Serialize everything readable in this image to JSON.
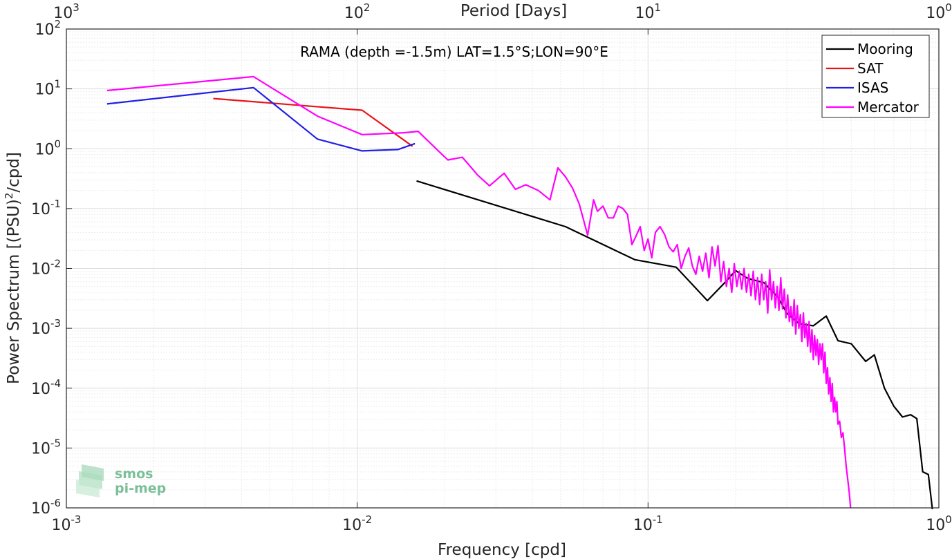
{
  "chart_data": {
    "type": "line",
    "annotation": "RAMA (depth =-1.5m) LAT=1.5°S;LON=90°E",
    "xlabel": "Frequency [cpd]",
    "ylabel_main": "Power Spectrum [(PSU)",
    "ylabel_sup": "2",
    "ylabel_tail": "/cpd]",
    "top_xlabel": "Period [Days]",
    "x_scale": "log",
    "y_scale": "log",
    "xlim": [
      0.001,
      1
    ],
    "ylim": [
      1e-06,
      100
    ],
    "grid": true,
    "legend_position": "top-right",
    "x_ticks": [
      {
        "value": 0.001,
        "base": "10",
        "exp": "-3"
      },
      {
        "value": 0.01,
        "base": "10",
        "exp": "-2"
      },
      {
        "value": 0.1,
        "base": "10",
        "exp": "-1"
      },
      {
        "value": 1,
        "base": "10",
        "exp": "0"
      }
    ],
    "y_ticks": [
      {
        "value": 100,
        "base": "10",
        "exp": "2"
      },
      {
        "value": 10,
        "base": "10",
        "exp": "1"
      },
      {
        "value": 1,
        "base": "10",
        "exp": "0"
      },
      {
        "value": 0.1,
        "base": "10",
        "exp": "-1"
      },
      {
        "value": 0.01,
        "base": "10",
        "exp": "-2"
      },
      {
        "value": 0.001,
        "base": "10",
        "exp": "-3"
      },
      {
        "value": 0.0001,
        "base": "10",
        "exp": "-4"
      },
      {
        "value": 1e-05,
        "base": "10",
        "exp": "-5"
      },
      {
        "value": 1e-06,
        "base": "10",
        "exp": "-6"
      }
    ],
    "top_ticks": [
      {
        "value": 0.001,
        "base": "10",
        "exp": "3"
      },
      {
        "value": 0.01,
        "base": "10",
        "exp": "2"
      },
      {
        "value": 0.1,
        "base": "10",
        "exp": "1"
      },
      {
        "value": 1,
        "base": "10",
        "exp": "0"
      }
    ],
    "series": [
      {
        "name": "Mooring",
        "color": "#000000",
        "points": [
          [
            0.016,
            0.29
          ],
          [
            0.052,
            0.05
          ],
          [
            0.09,
            0.014
          ],
          [
            0.125,
            0.0105
          ],
          [
            0.16,
            0.0029
          ],
          [
            0.185,
            0.006
          ],
          [
            0.2,
            0.0092
          ],
          [
            0.22,
            0.0068
          ],
          [
            0.25,
            0.0058
          ],
          [
            0.28,
            0.0033
          ],
          [
            0.3,
            0.0018
          ],
          [
            0.33,
            0.0012
          ],
          [
            0.37,
            0.0011
          ],
          [
            0.41,
            0.0016
          ],
          [
            0.45,
            0.00062
          ],
          [
            0.5,
            0.00055
          ],
          [
            0.56,
            0.00028
          ],
          [
            0.6,
            0.00036
          ],
          [
            0.65,
            0.0001
          ],
          [
            0.7,
            5e-05
          ],
          [
            0.75,
            3.3e-05
          ],
          [
            0.8,
            3.6e-05
          ],
          [
            0.84,
            3.1e-05
          ],
          [
            0.88,
            4e-06
          ],
          [
            0.92,
            3.6e-06
          ],
          [
            0.95,
            9.5e-07
          ]
        ]
      },
      {
        "name": "SAT",
        "color": "#e8141a",
        "points": [
          [
            0.0032,
            6.9
          ],
          [
            0.0104,
            4.4
          ],
          [
            0.0155,
            1.1
          ]
        ]
      },
      {
        "name": "ISAS",
        "color": "#1f1fe6",
        "points": [
          [
            0.00138,
            5.6
          ],
          [
            0.0044,
            10.5
          ],
          [
            0.0073,
            1.45
          ],
          [
            0.0104,
            0.92
          ],
          [
            0.0138,
            0.97
          ],
          [
            0.0158,
            1.22
          ]
        ]
      },
      {
        "name": "Mercator",
        "color": "#ff00ff",
        "points": [
          [
            0.00138,
            9.4
          ],
          [
            0.0044,
            16
          ],
          [
            0.0073,
            3.5
          ],
          [
            0.0104,
            1.72
          ],
          [
            0.0145,
            1.85
          ],
          [
            0.0162,
            1.95
          ],
          [
            0.0183,
            1.1
          ],
          [
            0.0205,
            0.65
          ],
          [
            0.023,
            0.72
          ],
          [
            0.026,
            0.36
          ],
          [
            0.0285,
            0.24
          ],
          [
            0.032,
            0.39
          ],
          [
            0.035,
            0.21
          ],
          [
            0.038,
            0.25
          ],
          [
            0.042,
            0.2
          ],
          [
            0.046,
            0.14
          ],
          [
            0.049,
            0.48
          ],
          [
            0.052,
            0.34
          ],
          [
            0.055,
            0.22
          ],
          [
            0.058,
            0.12
          ],
          [
            0.062,
            0.036
          ],
          [
            0.065,
            0.14
          ],
          [
            0.067,
            0.09
          ],
          [
            0.07,
            0.11
          ],
          [
            0.073,
            0.07
          ],
          [
            0.076,
            0.07
          ],
          [
            0.079,
            0.11
          ],
          [
            0.082,
            0.1
          ],
          [
            0.085,
            0.08
          ],
          [
            0.088,
            0.025
          ],
          [
            0.091,
            0.035
          ],
          [
            0.094,
            0.05
          ],
          [
            0.097,
            0.02
          ],
          [
            0.1,
            0.031
          ],
          [
            0.103,
            0.015
          ],
          [
            0.106,
            0.04
          ],
          [
            0.11,
            0.05
          ],
          [
            0.114,
            0.037
          ],
          [
            0.118,
            0.023
          ],
          [
            0.122,
            0.019
          ],
          [
            0.126,
            0.025
          ],
          [
            0.13,
            0.01
          ],
          [
            0.134,
            0.016
          ],
          [
            0.138,
            0.022
          ],
          [
            0.142,
            0.011
          ],
          [
            0.146,
            0.008
          ],
          [
            0.15,
            0.016
          ],
          [
            0.154,
            0.009
          ],
          [
            0.158,
            0.018
          ],
          [
            0.162,
            0.007
          ],
          [
            0.166,
            0.023
          ],
          [
            0.17,
            0.011
          ],
          [
            0.174,
            0.024
          ],
          [
            0.178,
            0.006
          ],
          [
            0.182,
            0.013
          ],
          [
            0.186,
            0.005
          ],
          [
            0.19,
            0.01
          ],
          [
            0.194,
            0.004
          ],
          [
            0.198,
            0.012
          ],
          [
            0.202,
            0.005
          ],
          [
            0.206,
            0.009
          ],
          [
            0.21,
            0.0045
          ],
          [
            0.214,
            0.01
          ],
          [
            0.218,
            0.004
          ],
          [
            0.222,
            0.008
          ],
          [
            0.226,
            0.0035
          ],
          [
            0.23,
            0.009
          ],
          [
            0.234,
            0.003
          ],
          [
            0.238,
            0.007
          ],
          [
            0.242,
            0.0025
          ],
          [
            0.246,
            0.008
          ],
          [
            0.25,
            0.003
          ],
          [
            0.254,
            0.006
          ],
          [
            0.258,
            0.0018
          ],
          [
            0.262,
            0.0095
          ],
          [
            0.266,
            0.003
          ],
          [
            0.27,
            0.006
          ],
          [
            0.274,
            0.0022
          ],
          [
            0.278,
            0.005
          ],
          [
            0.282,
            0.002
          ],
          [
            0.286,
            0.007
          ],
          [
            0.29,
            0.0021
          ],
          [
            0.294,
            0.0045
          ],
          [
            0.298,
            0.0015
          ],
          [
            0.302,
            0.0036
          ],
          [
            0.306,
            0.0013
          ],
          [
            0.31,
            0.0023
          ],
          [
            0.314,
            0.0011
          ],
          [
            0.318,
            0.003
          ],
          [
            0.322,
            0.0008
          ],
          [
            0.326,
            0.0024
          ],
          [
            0.33,
            0.001
          ],
          [
            0.334,
            0.0017
          ],
          [
            0.338,
            0.0006
          ],
          [
            0.342,
            0.0018
          ],
          [
            0.346,
            0.0007
          ],
          [
            0.35,
            0.0012
          ],
          [
            0.354,
            0.0005
          ],
          [
            0.358,
            0.0013
          ],
          [
            0.362,
            0.0004
          ],
          [
            0.366,
            0.00095
          ],
          [
            0.37,
            0.0003
          ],
          [
            0.374,
            0.00075
          ],
          [
            0.378,
            0.00035
          ],
          [
            0.382,
            0.00065
          ],
          [
            0.386,
            0.00025
          ],
          [
            0.39,
            0.00055
          ],
          [
            0.394,
            0.0003
          ],
          [
            0.398,
            0.00055
          ],
          [
            0.402,
            0.00018
          ],
          [
            0.406,
            0.0004
          ],
          [
            0.41,
            0.00012
          ],
          [
            0.414,
            0.00022
          ],
          [
            0.418,
            8e-05
          ],
          [
            0.422,
            0.00015
          ],
          [
            0.426,
            6e-05
          ],
          [
            0.43,
            0.00012
          ],
          [
            0.434,
            4e-05
          ],
          [
            0.438,
            7e-05
          ],
          [
            0.442,
            4e-05
          ],
          [
            0.446,
            6e-05
          ],
          [
            0.45,
            2.5e-05
          ],
          [
            0.456,
            2.8e-05
          ],
          [
            0.462,
            1.5e-05
          ],
          [
            0.468,
            1.8e-05
          ],
          [
            0.474,
            1e-05
          ],
          [
            0.48,
            5e-06
          ],
          [
            0.486,
            3e-06
          ],
          [
            0.492,
            1.8e-06
          ],
          [
            0.497,
            1e-06
          ]
        ]
      }
    ]
  }
}
